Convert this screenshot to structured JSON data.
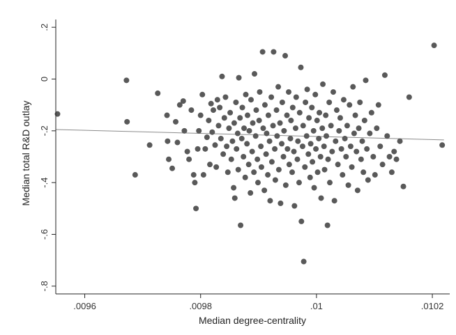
{
  "chart_data": {
    "type": "scatter",
    "title": "",
    "xlabel": "Median degree-centrality",
    "ylabel": "Median total R&D outlay",
    "xlim": [
      0.00955,
      0.01023
    ],
    "ylim": [
      -0.83,
      0.23
    ],
    "x_ticks": [
      {
        "value": 0.0096,
        "label": ".0096"
      },
      {
        "value": 0.0098,
        "label": ".0098"
      },
      {
        "value": 0.01,
        "label": ".01"
      },
      {
        "value": 0.0102,
        "label": ".0102"
      }
    ],
    "y_ticks": [
      {
        "value": 0.2,
        "label": ".2"
      },
      {
        "value": 0,
        "label": "0"
      },
      {
        "value": -0.2,
        "label": "-.2"
      },
      {
        "value": -0.4,
        "label": "-.4"
      },
      {
        "value": -0.6,
        "label": "-.6"
      },
      {
        "value": -0.8,
        "label": "-.8"
      }
    ],
    "grid": false,
    "colors": {
      "points": "#595959",
      "fit_line": "#8a8a8a",
      "axis": "#222222"
    },
    "fit_line": {
      "x": [
        0.00955,
        0.01022
      ],
      "y": [
        -0.195,
        -0.235
      ]
    },
    "points": [
      [
        0.009553,
        -0.135
      ],
      [
        0.009672,
        -0.005
      ],
      [
        0.009673,
        -0.165
      ],
      [
        0.009687,
        -0.37
      ],
      [
        0.009712,
        -0.255
      ],
      [
        0.009726,
        -0.055
      ],
      [
        0.009742,
        -0.14
      ],
      [
        0.009743,
        -0.24
      ],
      [
        0.009745,
        -0.31
      ],
      [
        0.009751,
        -0.345
      ],
      [
        0.009757,
        -0.165
      ],
      [
        0.00976,
        -0.245
      ],
      [
        0.009764,
        -0.1
      ],
      [
        0.00977,
        -0.085
      ],
      [
        0.009772,
        -0.2
      ],
      [
        0.009777,
        -0.28
      ],
      [
        0.00978,
        -0.31
      ],
      [
        0.009784,
        -0.12
      ],
      [
        0.009788,
        -0.37
      ],
      [
        0.00979,
        -0.4
      ],
      [
        0.009792,
        -0.5
      ],
      [
        0.009795,
        -0.27
      ],
      [
        0.009797,
        -0.2
      ],
      [
        0.0098,
        -0.14
      ],
      [
        0.009803,
        -0.06
      ],
      [
        0.009805,
        -0.37
      ],
      [
        0.009808,
        -0.27
      ],
      [
        0.009811,
        -0.225
      ],
      [
        0.009814,
        -0.16
      ],
      [
        0.009816,
        -0.33
      ],
      [
        0.009818,
        -0.095
      ],
      [
        0.00982,
        -0.205
      ],
      [
        0.009822,
        -0.12
      ],
      [
        0.009825,
        -0.255
      ],
      [
        0.009827,
        -0.34
      ],
      [
        0.009829,
        -0.08
      ],
      [
        0.009831,
        -0.18
      ],
      [
        0.009833,
        -0.11
      ],
      [
        0.009835,
        -0.23
      ],
      [
        0.009837,
        0.01
      ],
      [
        0.009839,
        -0.29
      ],
      [
        0.009841,
        -0.15
      ],
      [
        0.009843,
        -0.07
      ],
      [
        0.009845,
        -0.26
      ],
      [
        0.009847,
        -0.36
      ],
      [
        0.009849,
        -0.19
      ],
      [
        0.009851,
        -0.13
      ],
      [
        0.009853,
        -0.31
      ],
      [
        0.009855,
        -0.24
      ],
      [
        0.009857,
        -0.42
      ],
      [
        0.009858,
        -0.17
      ],
      [
        0.009859,
        -0.46
      ],
      [
        0.009861,
        -0.09
      ],
      [
        0.009862,
        -0.27
      ],
      [
        0.009864,
        -0.21
      ],
      [
        0.009865,
        -0.35
      ],
      [
        0.009866,
        0.005
      ],
      [
        0.009868,
        -0.15
      ],
      [
        0.009869,
        -0.565
      ],
      [
        0.009871,
        -0.23
      ],
      [
        0.009872,
        -0.11
      ],
      [
        0.009874,
        -0.3
      ],
      [
        0.009875,
        -0.19
      ],
      [
        0.009877,
        -0.38
      ],
      [
        0.009878,
        -0.06
      ],
      [
        0.00988,
        -0.25
      ],
      [
        0.009881,
        -0.14
      ],
      [
        0.009883,
        -0.33
      ],
      [
        0.009884,
        -0.2
      ],
      [
        0.009886,
        -0.44
      ],
      [
        0.009887,
        -0.08
      ],
      [
        0.009889,
        -0.28
      ],
      [
        0.00989,
        -0.17
      ],
      [
        0.009892,
        -0.36
      ],
      [
        0.009893,
        0.02
      ],
      [
        0.009895,
        -0.22
      ],
      [
        0.009896,
        -0.12
      ],
      [
        0.009898,
        -0.31
      ],
      [
        0.009899,
        -0.4
      ],
      [
        0.009901,
        -0.16
      ],
      [
        0.009902,
        -0.05
      ],
      [
        0.009904,
        -0.26
      ],
      [
        0.009905,
        -0.34
      ],
      [
        0.009907,
        0.105
      ],
      [
        0.009908,
        -0.19
      ],
      [
        0.00991,
        -0.43
      ],
      [
        0.009911,
        -0.1
      ],
      [
        0.009913,
        -0.29
      ],
      [
        0.009914,
        -0.21
      ],
      [
        0.009916,
        -0.37
      ],
      [
        0.009917,
        -0.14
      ],
      [
        0.009919,
        -0.24
      ],
      [
        0.00992,
        -0.47
      ],
      [
        0.009922,
        -0.07
      ],
      [
        0.009923,
        -0.32
      ],
      [
        0.009925,
        -0.18
      ],
      [
        0.009926,
        0.105
      ],
      [
        0.009928,
        -0.27
      ],
      [
        0.009929,
        -0.39
      ],
      [
        0.009931,
        -0.12
      ],
      [
        0.009932,
        -0.22
      ],
      [
        0.009934,
        -0.03
      ],
      [
        0.009935,
        -0.35
      ],
      [
        0.009937,
        -0.17
      ],
      [
        0.009938,
        -0.48
      ],
      [
        0.00994,
        -0.25
      ],
      [
        0.009941,
        -0.09
      ],
      [
        0.009943,
        -0.3
      ],
      [
        0.009944,
        -0.2
      ],
      [
        0.009946,
        0.09
      ],
      [
        0.009947,
        -0.41
      ],
      [
        0.009949,
        -0.14
      ],
      [
        0.00995,
        -0.27
      ],
      [
        0.009952,
        -0.05
      ],
      [
        0.009953,
        -0.33
      ],
      [
        0.009955,
        -0.23
      ],
      [
        0.009956,
        -0.16
      ],
      [
        0.009958,
        -0.36
      ],
      [
        0.009959,
        -0.11
      ],
      [
        0.009961,
        -0.28
      ],
      [
        0.009962,
        -0.49
      ],
      [
        0.009964,
        -0.19
      ],
      [
        0.009965,
        -0.07
      ],
      [
        0.009967,
        -0.31
      ],
      [
        0.009968,
        -0.24
      ],
      [
        0.00997,
        -0.4
      ],
      [
        0.009971,
        -0.13
      ],
      [
        0.009973,
        0.045
      ],
      [
        0.009974,
        -0.55
      ],
      [
        0.009976,
        -0.26
      ],
      [
        0.009977,
        -0.18
      ],
      [
        0.009978,
        -0.705
      ],
      [
        0.00998,
        -0.34
      ],
      [
        0.009981,
        -0.09
      ],
      [
        0.009983,
        -0.22
      ],
      [
        0.009984,
        -0.04
      ],
      [
        0.009986,
        -0.29
      ],
      [
        0.009987,
        -0.15
      ],
      [
        0.009989,
        -0.38
      ],
      [
        0.00999,
        -0.25
      ],
      [
        0.009992,
        -0.11
      ],
      [
        0.009993,
        -0.32
      ],
      [
        0.009995,
        -0.2
      ],
      [
        0.009996,
        -0.42
      ],
      [
        0.009998,
        -0.06
      ],
      [
        0.009999,
        -0.27
      ],
      [
        0.010001,
        -0.16
      ],
      [
        0.010002,
        -0.36
      ],
      [
        0.010004,
        -0.23
      ],
      [
        0.010005,
        -0.13
      ],
      [
        0.010007,
        -0.3
      ],
      [
        0.010008,
        -0.46
      ],
      [
        0.01001,
        -0.19
      ],
      [
        0.010011,
        -0.02
      ],
      [
        0.010013,
        -0.26
      ],
      [
        0.010014,
        -0.35
      ],
      [
        0.010016,
        -0.14
      ],
      [
        0.010017,
        -0.22
      ],
      [
        0.010019,
        -0.565
      ],
      [
        0.01002,
        -0.31
      ],
      [
        0.010022,
        -0.09
      ],
      [
        0.010023,
        -0.4
      ],
      [
        0.010025,
        -0.18
      ],
      [
        0.010027,
        -0.28
      ],
      [
        0.010029,
        -0.05
      ],
      [
        0.010031,
        -0.47
      ],
      [
        0.010033,
        -0.24
      ],
      [
        0.010035,
        -0.12
      ],
      [
        0.010037,
        -0.33
      ],
      [
        0.010039,
        -0.2
      ],
      [
        0.010041,
        -0.15
      ],
      [
        0.010043,
        -0.27
      ],
      [
        0.010045,
        -0.37
      ],
      [
        0.010047,
        -0.08
      ],
      [
        0.010049,
        -0.23
      ],
      [
        0.010051,
        -0.3
      ],
      [
        0.010053,
        -0.18
      ],
      [
        0.010055,
        -0.41
      ],
      [
        0.010057,
        -0.1
      ],
      [
        0.010059,
        -0.26
      ],
      [
        0.010061,
        -0.34
      ],
      [
        0.010063,
        -0.03
      ],
      [
        0.010065,
        -0.21
      ],
      [
        0.010067,
        -0.14
      ],
      [
        0.010069,
        -0.28
      ],
      [
        0.010071,
        -0.43
      ],
      [
        0.010073,
        -0.19
      ],
      [
        0.010075,
        -0.09
      ],
      [
        0.010077,
        -0.31
      ],
      [
        0.010079,
        -0.24
      ],
      [
        0.010081,
        -0.36
      ],
      [
        0.010083,
        -0.16
      ],
      [
        0.010085,
        -0.005
      ],
      [
        0.010087,
        -0.27
      ],
      [
        0.010089,
        -0.39
      ],
      [
        0.010092,
        -0.21
      ],
      [
        0.010095,
        -0.13
      ],
      [
        0.010098,
        -0.3
      ],
      [
        0.010101,
        -0.37
      ],
      [
        0.010104,
        -0.19
      ],
      [
        0.010107,
        -0.1
      ],
      [
        0.01011,
        -0.26
      ],
      [
        0.010114,
        -0.33
      ],
      [
        0.010118,
        0.015
      ],
      [
        0.010122,
        -0.22
      ],
      [
        0.010126,
        -0.3
      ],
      [
        0.01013,
        -0.36
      ],
      [
        0.010134,
        -0.28
      ],
      [
        0.010138,
        -0.31
      ],
      [
        0.010144,
        -0.24
      ],
      [
        0.01015,
        -0.415
      ],
      [
        0.01016,
        -0.07
      ],
      [
        0.010203,
        0.13
      ],
      [
        0.010217,
        -0.255
      ]
    ]
  }
}
